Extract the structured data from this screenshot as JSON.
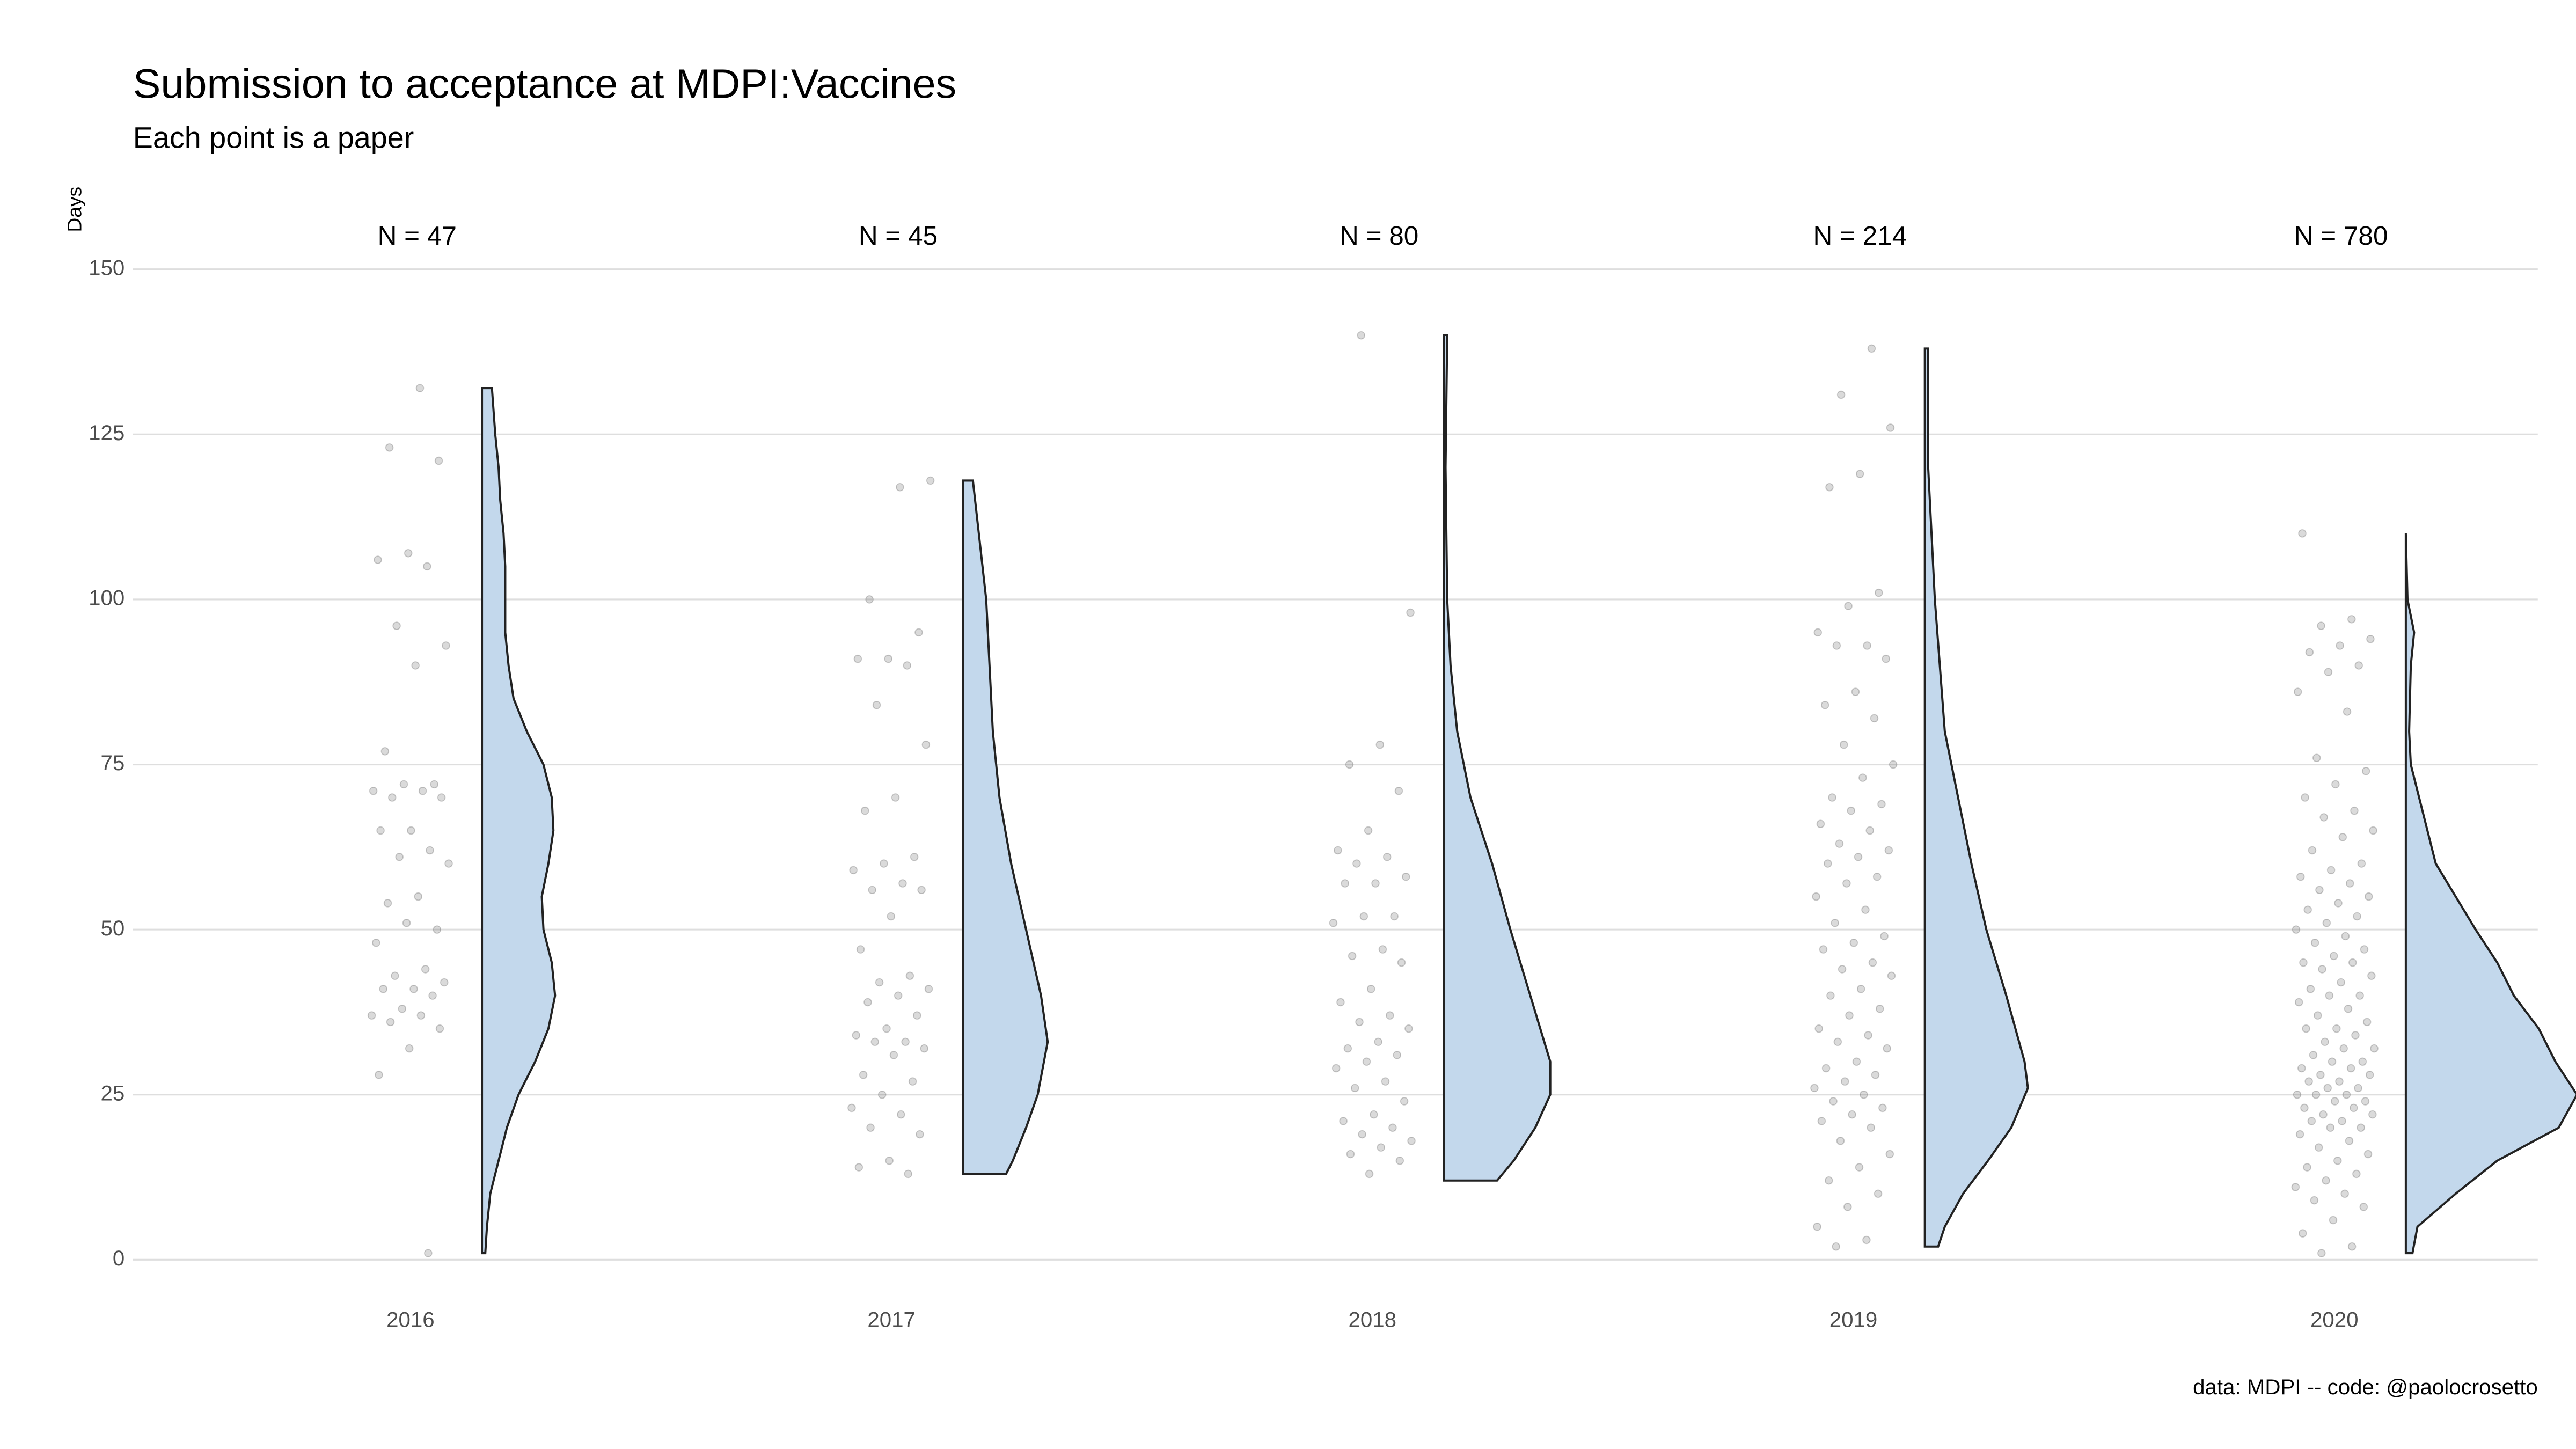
{
  "chart_data": {
    "type": "raincloud",
    "title": "Submission to acceptance at MDPI:Vaccines",
    "subtitle": "Each point is a paper",
    "y_label": "Days",
    "caption": "data: MDPI -- code: @paolocrosetto",
    "categories": [
      "2016",
      "2017",
      "2018",
      "2019",
      "2020"
    ],
    "n_labels": [
      "N = 47",
      "N = 45",
      "N = 80",
      "N = 214",
      "N = 780"
    ],
    "ylim": [
      0,
      150
    ],
    "yticks": [
      0,
      25,
      50,
      75,
      100,
      125,
      150
    ],
    "grid": true,
    "violin_color": "#c3d8ec",
    "point_color": "#555555",
    "points": [
      [
        132,
        123,
        121,
        107,
        106,
        105,
        96,
        93,
        90,
        77,
        72,
        72,
        71,
        71,
        70,
        70,
        65,
        65,
        62,
        61,
        60,
        55,
        54,
        50,
        51,
        48,
        44,
        43,
        42,
        41,
        41,
        40,
        38,
        37,
        37,
        36,
        35,
        32,
        28,
        1
      ],
      [
        118,
        117,
        100,
        95,
        91,
        91,
        90,
        84,
        78,
        70,
        68,
        61,
        60,
        59,
        57,
        56,
        56,
        52,
        47,
        43,
        42,
        41,
        40,
        39,
        37,
        35,
        34,
        33,
        33,
        32,
        31,
        28,
        27,
        25,
        23,
        22,
        20,
        19,
        15,
        14,
        13
      ],
      [
        140,
        98,
        78,
        75,
        71,
        65,
        62,
        61,
        60,
        58,
        57,
        57,
        52,
        52,
        51,
        47,
        46,
        45,
        41,
        39,
        37,
        36,
        35,
        33,
        32,
        31,
        30,
        29,
        27,
        26,
        24,
        22,
        21,
        20,
        19,
        18,
        17,
        16,
        15,
        13
      ],
      [
        138,
        131,
        126,
        119,
        117,
        101,
        99,
        95,
        93,
        93,
        91,
        86,
        84,
        82,
        78,
        75,
        73,
        70,
        69,
        68,
        66,
        65,
        63,
        62,
        61,
        60,
        58,
        57,
        55,
        53,
        51,
        49,
        48,
        47,
        45,
        44,
        43,
        41,
        40,
        38,
        37,
        35,
        34,
        33,
        32,
        30,
        29,
        28,
        27,
        26,
        25,
        24,
        23,
        22,
        21,
        20,
        18,
        16,
        14,
        12,
        10,
        8,
        5,
        3,
        2
      ],
      [
        110,
        97,
        96,
        94,
        93,
        92,
        90,
        89,
        86,
        83,
        76,
        74,
        72,
        70,
        68,
        67,
        65,
        64,
        62,
        60,
        59,
        58,
        57,
        56,
        55,
        54,
        53,
        52,
        51,
        50,
        49,
        48,
        47,
        46,
        45,
        45,
        44,
        43,
        42,
        41,
        40,
        40,
        39,
        38,
        37,
        36,
        35,
        35,
        34,
        33,
        32,
        32,
        31,
        30,
        30,
        29,
        29,
        28,
        28,
        27,
        27,
        26,
        26,
        25,
        25,
        25,
        24,
        24,
        23,
        23,
        22,
        22,
        21,
        21,
        20,
        20,
        19,
        18,
        17,
        16,
        15,
        14,
        13,
        12,
        11,
        10,
        9,
        8,
        6,
        4,
        2,
        1
      ]
    ],
    "violin_y": [
      [
        1,
        1,
        5,
        10,
        15,
        20,
        25,
        30,
        35,
        40,
        45,
        50,
        55,
        60,
        65,
        70,
        75,
        80,
        85,
        90,
        95,
        100,
        105,
        110,
        115,
        120,
        125,
        132,
        132
      ],
      [
        13,
        13,
        15,
        20,
        25,
        33,
        40,
        50,
        60,
        70,
        80,
        90,
        100,
        118,
        118
      ],
      [
        12,
        12,
        15,
        20,
        25,
        30,
        40,
        50,
        60,
        70,
        80,
        90,
        100,
        120,
        140,
        140
      ],
      [
        2,
        2,
        5,
        10,
        15,
        20,
        26,
        30,
        40,
        50,
        60,
        70,
        80,
        100,
        120,
        138,
        138
      ],
      [
        1,
        1,
        5,
        10,
        15,
        20,
        25,
        30,
        35,
        40,
        45,
        50,
        55,
        60,
        70,
        75,
        80,
        90,
        95,
        100,
        110
      ]
    ],
    "violin_density": [
      [
        0,
        0.02,
        0.03,
        0.05,
        0.1,
        0.15,
        0.22,
        0.32,
        0.4,
        0.44,
        0.42,
        0.37,
        0.36,
        0.4,
        0.43,
        0.42,
        0.37,
        0.27,
        0.19,
        0.16,
        0.14,
        0.14,
        0.14,
        0.13,
        0.11,
        0.1,
        0.08,
        0.06,
        0
      ],
      [
        0,
        0.26,
        0.3,
        0.38,
        0.45,
        0.51,
        0.47,
        0.38,
        0.29,
        0.22,
        0.18,
        0.16,
        0.14,
        0.06,
        0
      ],
      [
        0,
        0.32,
        0.42,
        0.55,
        0.64,
        0.64,
        0.52,
        0.4,
        0.29,
        0.16,
        0.08,
        0.04,
        0.02,
        0.01,
        0.02,
        0
      ],
      [
        0,
        0.08,
        0.12,
        0.23,
        0.38,
        0.52,
        0.62,
        0.6,
        0.49,
        0.37,
        0.28,
        0.2,
        0.12,
        0.06,
        0.02,
        0.02,
        0
      ],
      [
        0,
        0.04,
        0.07,
        0.3,
        0.55,
        0.92,
        1.03,
        0.9,
        0.8,
        0.65,
        0.55,
        0.42,
        0.3,
        0.18,
        0.08,
        0.03,
        0.02,
        0.03,
        0.05,
        0.01,
        0
      ]
    ]
  }
}
